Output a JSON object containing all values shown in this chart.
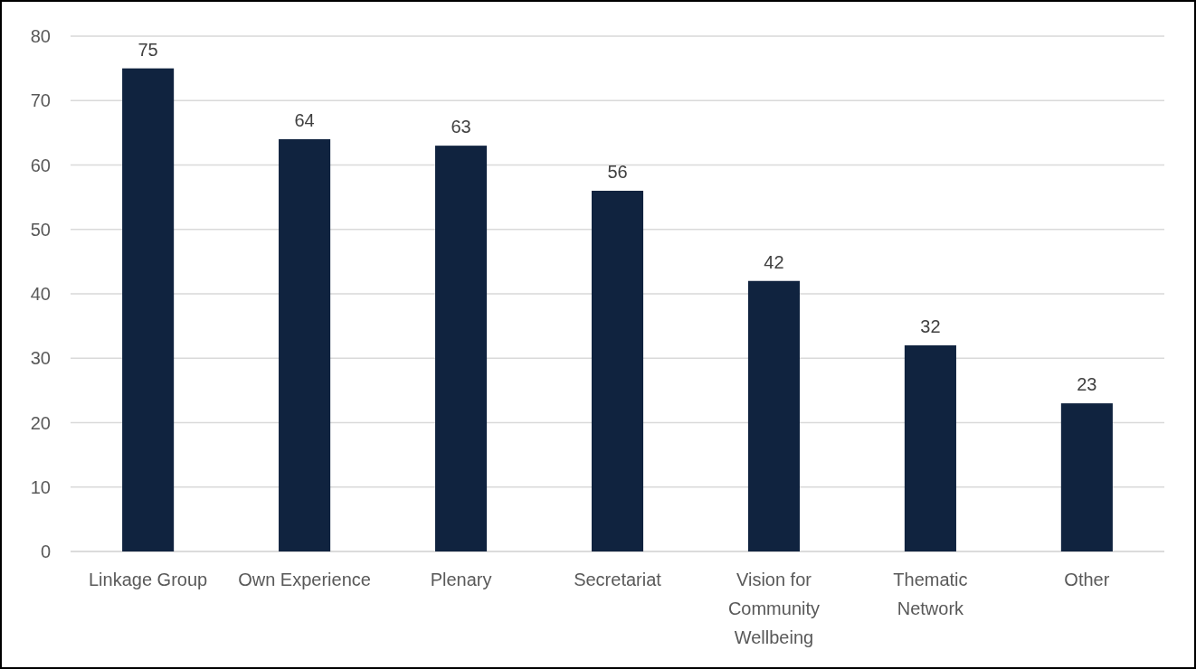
{
  "chart_data": {
    "type": "bar",
    "categories": [
      "Linkage Group",
      "Own Experience",
      "Plenary",
      "Secretariat",
      "Vision for Community Wellbeing",
      "Thematic Network",
      "Other"
    ],
    "values": [
      75,
      64,
      63,
      56,
      42,
      32,
      23
    ],
    "color": "#10233f",
    "ylim": [
      0,
      80
    ],
    "yticks": [
      0,
      10,
      20,
      30,
      40,
      50,
      60,
      70,
      80
    ],
    "grid": "y",
    "data_labels": true
  }
}
